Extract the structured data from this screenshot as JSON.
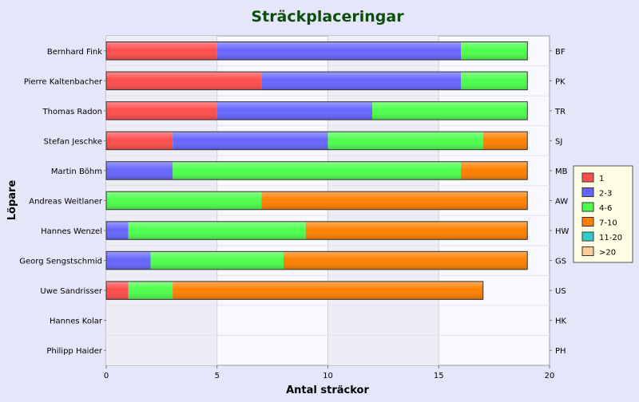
{
  "chart_data": {
    "type": "bar",
    "orientation": "horizontal",
    "stacked": true,
    "title": "Sträckplaceringar",
    "xlabel": "Antal sträckor",
    "ylabel": "Löpare",
    "xlim": [
      0,
      20
    ],
    "xticks": [
      0,
      5,
      10,
      15,
      20
    ],
    "grid": true,
    "legend_position": "right",
    "categories": [
      "Bernhard Fink",
      "Pierre Kaltenbacher",
      "Thomas Radon",
      "Stefan Jeschke",
      "Martin Böhm",
      "Andreas Weitlaner",
      "Hannes Wenzel",
      "Georg Sengstschmid",
      "Uwe Sandrisser",
      "Hannes Kolar",
      "Philipp Haider"
    ],
    "abbreviations": [
      "BF",
      "PK",
      "TR",
      "SJ",
      "MB",
      "AW",
      "HW",
      "GS",
      "US",
      "HK",
      "PH"
    ],
    "series": [
      {
        "name": "1",
        "color": "#ff4d4d",
        "values": [
          5,
          7,
          5,
          3,
          0,
          0,
          0,
          0,
          1,
          0,
          0
        ]
      },
      {
        "name": "2-3",
        "color": "#6666ff",
        "values": [
          11,
          9,
          7,
          7,
          3,
          0,
          1,
          2,
          0,
          0,
          0
        ]
      },
      {
        "name": "4-6",
        "color": "#4dff4d",
        "values": [
          3,
          3,
          7,
          7,
          13,
          7,
          8,
          6,
          2,
          0,
          0
        ]
      },
      {
        "name": "7-10",
        "color": "#ff8000",
        "values": [
          0,
          0,
          0,
          2,
          3,
          12,
          10,
          11,
          14,
          0,
          0
        ]
      },
      {
        "name": "11-20",
        "color": "#33cccc",
        "values": [
          0,
          0,
          0,
          0,
          0,
          0,
          0,
          0,
          0,
          0,
          0
        ]
      },
      {
        "name": ">20",
        "color": "#ffcc99",
        "values": [
          0,
          0,
          0,
          0,
          0,
          0,
          0,
          0,
          0,
          0,
          0
        ]
      }
    ]
  }
}
